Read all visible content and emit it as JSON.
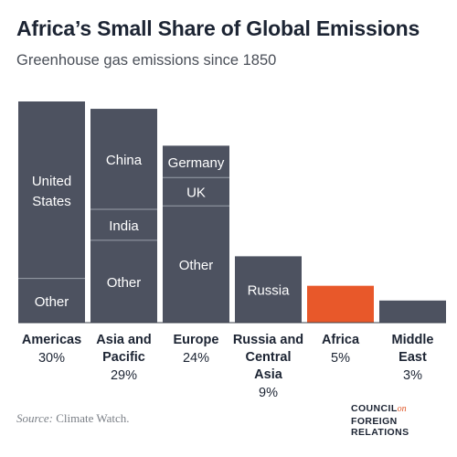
{
  "title": "Africa’s Small Share of Global Emissions",
  "subtitle": "Greenhouse gas emissions since 1850",
  "source_prefix": "Source:",
  "source_text": " Climate Watch.",
  "logo": {
    "line1": "COUNCIL",
    "line1_suffix": "on",
    "line2": "FOREIGN",
    "line3": "RELATIONS"
  },
  "colors": {
    "bar": "#4d5260",
    "highlight": "#e8582a",
    "divider": "#9aa0aa",
    "label_text": "#ffffff"
  },
  "chart_data": {
    "type": "bar",
    "title": "Africa’s Small Share of Global Emissions",
    "subtitle": "Greenhouse gas emissions since 1850",
    "ylabel": "",
    "ylim": [
      0,
      30
    ],
    "grid": false,
    "legend": "none",
    "categories": [
      {
        "name": [
          "Americas"
        ],
        "share_label": "30%",
        "value": 30,
        "highlight": false,
        "segments": [
          {
            "label": [
              "Other"
            ],
            "share": 0.2
          },
          {
            "label": [
              "United",
              "States"
            ],
            "share": 0.8
          }
        ]
      },
      {
        "name": [
          "Asia and",
          "Pacific"
        ],
        "share_label": "29%",
        "value": 29,
        "highlight": false,
        "segments": [
          {
            "label": [
              "Other"
            ],
            "share": 0.385
          },
          {
            "label": [
              "India"
            ],
            "share": 0.145
          },
          {
            "label": [
              "China"
            ],
            "share": 0.47
          }
        ]
      },
      {
        "name": [
          "Europe"
        ],
        "share_label": "24%",
        "value": 24,
        "highlight": false,
        "segments": [
          {
            "label": [
              "Other"
            ],
            "share": 0.66
          },
          {
            "label": [
              "UK"
            ],
            "share": 0.16
          },
          {
            "label": [
              "Germany"
            ],
            "share": 0.18
          }
        ]
      },
      {
        "name": [
          "Russia and",
          "Central",
          "Asia"
        ],
        "share_label": "9%",
        "value": 9,
        "highlight": false,
        "segments": [
          {
            "label": [
              "Russia"
            ],
            "share": 1.0
          }
        ]
      },
      {
        "name": [
          "Africa"
        ],
        "share_label": "5%",
        "value": 5,
        "highlight": true,
        "segments": [
          {
            "label": [],
            "share": 1.0
          }
        ]
      },
      {
        "name": [
          "Middle",
          "East"
        ],
        "share_label": "3%",
        "value": 3,
        "highlight": false,
        "segments": [
          {
            "label": [],
            "share": 1.0
          }
        ]
      }
    ]
  }
}
